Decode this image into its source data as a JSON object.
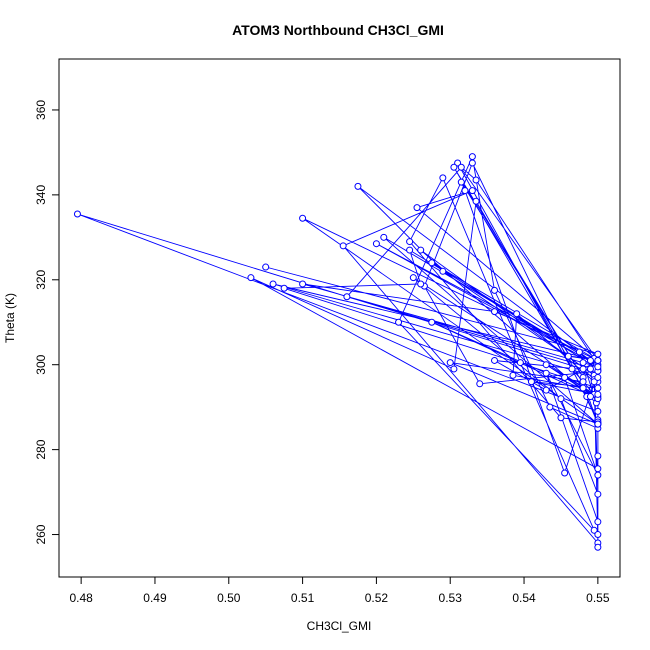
{
  "chart_data": {
    "type": "line",
    "title": "ATOM3 Northbound CH3Cl_GMI",
    "xlabel": "CH3Cl_GMI",
    "ylabel": "Theta (K)",
    "xlim": [
      0.477,
      0.553
    ],
    "ylim": [
      250,
      372
    ],
    "x_ticks": [
      0.48,
      0.49,
      0.5,
      0.51,
      0.52,
      0.53,
      0.54,
      0.55
    ],
    "x_tick_labels": [
      "0.48",
      "0.49",
      "0.50",
      "0.51",
      "0.52",
      "0.53",
      "0.54",
      "0.55"
    ],
    "y_ticks": [
      260,
      280,
      300,
      320,
      340,
      360
    ],
    "y_tick_labels": [
      "260",
      "280",
      "300",
      "320",
      "340",
      "360"
    ],
    "grid": false,
    "legend": "none",
    "series_color": "#0000ff",
    "x": [
      0.5495,
      0.5395,
      0.529,
      0.5245,
      0.545,
      0.55,
      0.533,
      0.5265,
      0.534,
      0.55,
      0.5498,
      0.52,
      0.5475,
      0.548,
      0.5498,
      0.526,
      0.5495,
      0.5485,
      0.531,
      0.55,
      0.5255,
      0.533,
      0.5155,
      0.55,
      0.5495,
      0.548,
      0.4795,
      0.55,
      0.55,
      0.55,
      0.55,
      0.5435,
      0.536,
      0.533,
      0.523,
      0.55,
      0.55,
      0.5275,
      0.55,
      0.55,
      0.55,
      0.55,
      0.543,
      0.55,
      0.5455,
      0.55,
      0.5275,
      0.5495,
      0.5465,
      0.5305,
      0.548,
      0.5315,
      0.532,
      0.5455,
      0.5495,
      0.539,
      0.5385,
      0.548,
      0.55,
      0.521,
      0.55,
      0.5335,
      0.5315,
      0.516,
      0.5495,
      0.55,
      0.545,
      0.525,
      0.55,
      0.543,
      0.55,
      0.55,
      0.55,
      0.55,
      0.548,
      0.53,
      0.55,
      0.51,
      0.55,
      0.543,
      0.536,
      0.55,
      0.549,
      0.5495,
      0.546,
      0.55,
      0.55,
      0.55,
      0.506,
      0.55,
      0.529,
      0.5175,
      0.549,
      0.5245,
      0.526,
      0.5075,
      0.55,
      0.541,
      0.55,
      0.55,
      0.503,
      0.5305,
      0.5335,
      0.549,
      0.55,
      0.51,
      0.536,
      0.55,
      0.505
    ],
    "y": [
      261.0,
      300.5,
      344.0,
      329.0,
      287.5,
      286.5,
      347.5,
      318.5,
      295.5,
      298.5,
      300.0,
      328.5,
      303.0,
      300.5,
      291.0,
      327.0,
      297.5,
      292.5,
      347.5,
      301.0,
      337.0,
      341.0,
      328.0,
      258.0,
      296.5,
      299.0,
      335.5,
      289.0,
      286.0,
      257.0,
      285.0,
      290.0,
      317.5,
      349.0,
      310.0,
      260.0,
      301.0,
      324.0,
      299.0,
      278.5,
      296.0,
      263.0,
      298.0,
      274.0,
      297.0,
      292.0,
      310.0,
      293.0,
      299.0,
      346.5,
      297.0,
      343.0,
      341.0,
      274.5,
      296.0,
      312.0,
      297.5,
      294.5,
      286.0,
      330.0,
      300.0,
      343.5,
      346.5,
      316.0,
      299.0,
      269.5,
      292.0,
      320.5,
      292.5,
      300.0,
      292.0,
      287.0,
      286.5,
      286.0,
      296.0,
      300.5,
      286.0,
      334.5,
      301.0,
      294.0,
      301.0,
      298.5,
      299.0,
      301.5,
      302.0,
      301.0,
      286.0,
      301.0,
      319.0,
      297.0,
      322.0,
      342.0,
      301.0,
      327.0,
      319.0,
      318.0,
      294.5,
      296.0,
      293.0,
      275.5,
      320.5,
      299.0,
      338.5,
      292.5,
      299.5,
      319.0,
      312.5,
      302.5,
      323.0
    ]
  }
}
